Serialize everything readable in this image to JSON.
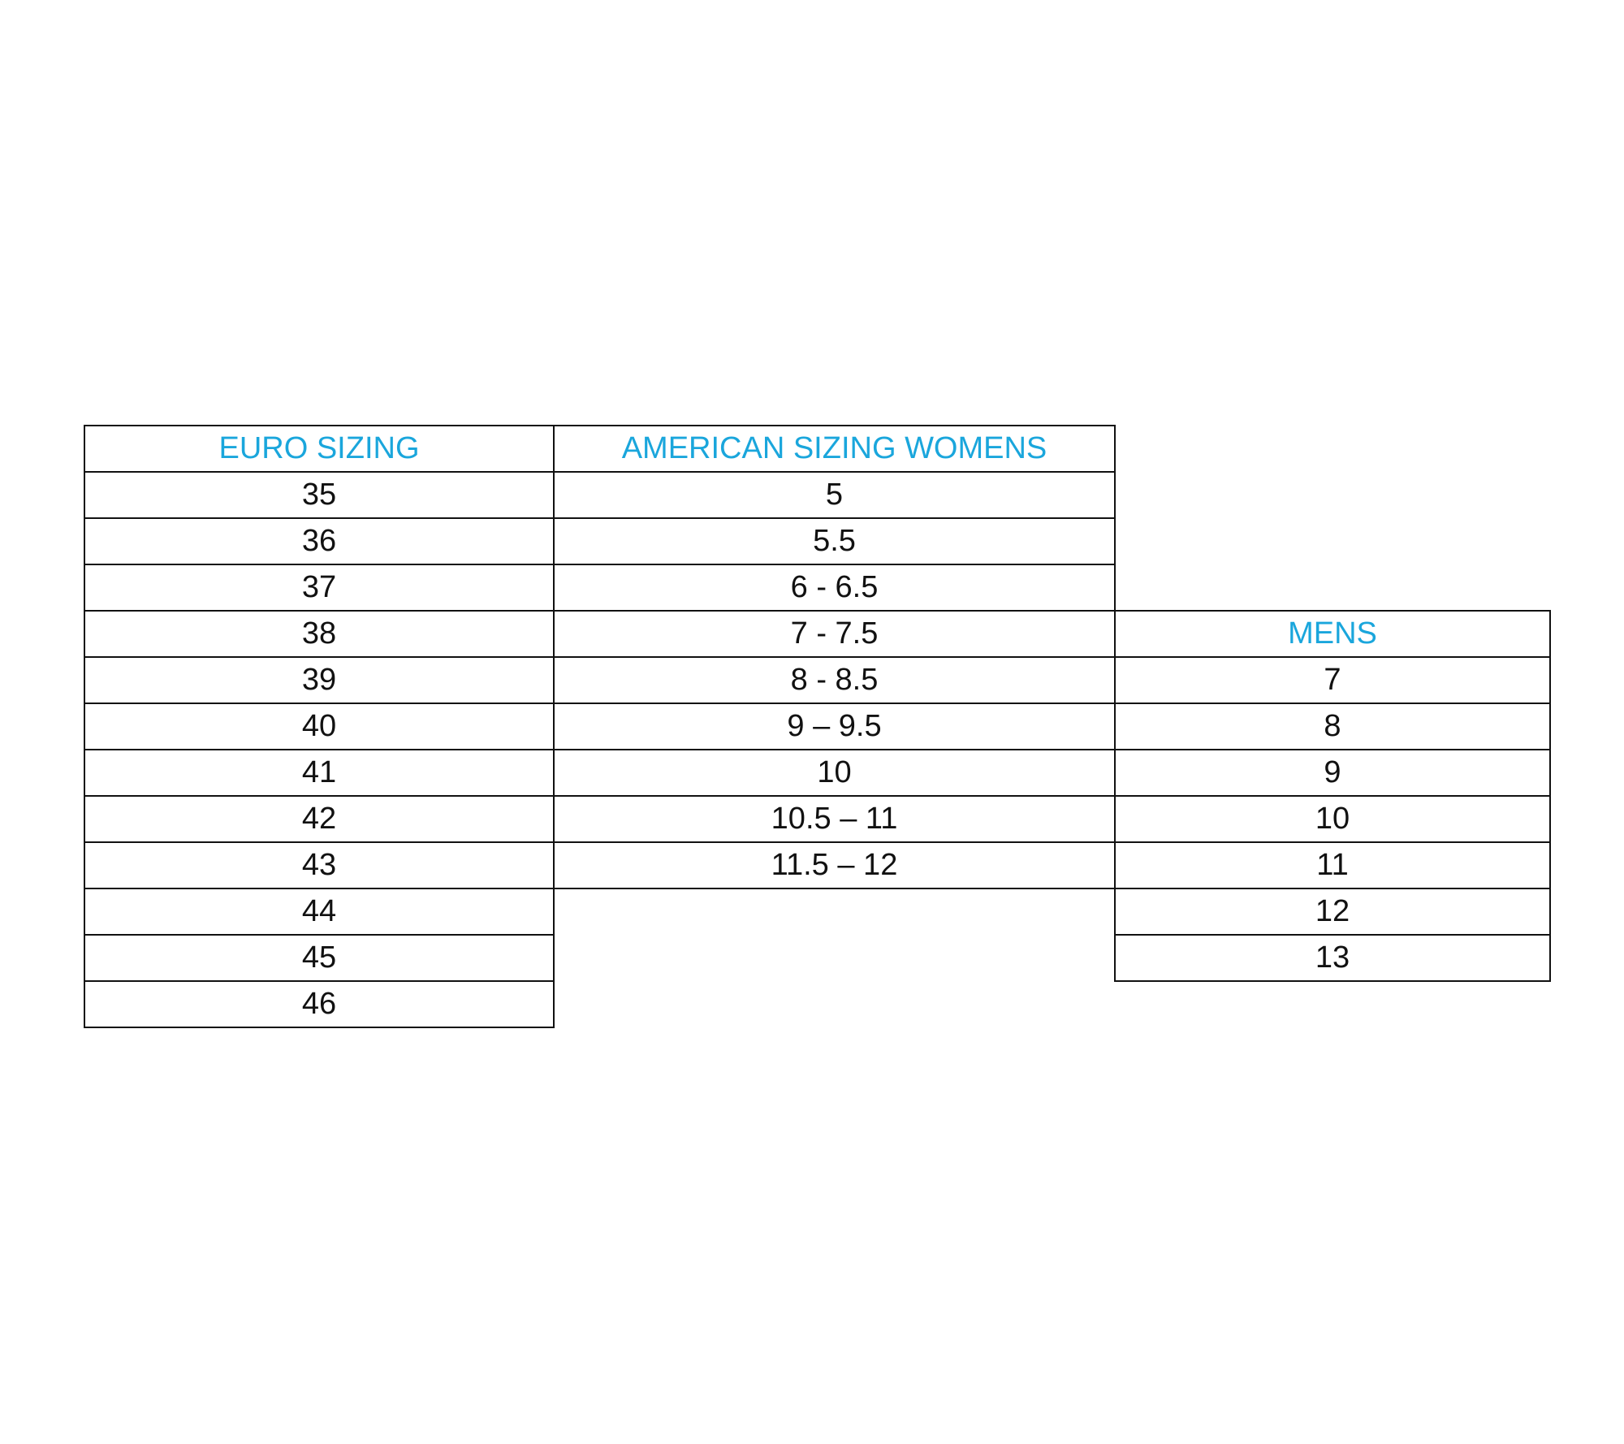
{
  "table": {
    "headers": {
      "euro": "EURO SIZING",
      "womens": "AMERICAN SIZING WOMENS",
      "mens": "MENS"
    },
    "euro": [
      "35",
      "36",
      "37",
      "38",
      "39",
      "40",
      "41",
      "42",
      "43",
      "44",
      "45",
      "46"
    ],
    "womens": [
      "5",
      "5.5",
      "6 - 6.5",
      "7 - 7.5",
      "8 - 8.5",
      "9 – 9.5",
      "10",
      "10.5 – 11",
      "11.5 – 12"
    ],
    "mens": [
      "7",
      "8",
      "9",
      "10",
      "11",
      "12",
      "13"
    ]
  },
  "colors": {
    "header_text": "#1aa6dc",
    "border": "#111111"
  }
}
